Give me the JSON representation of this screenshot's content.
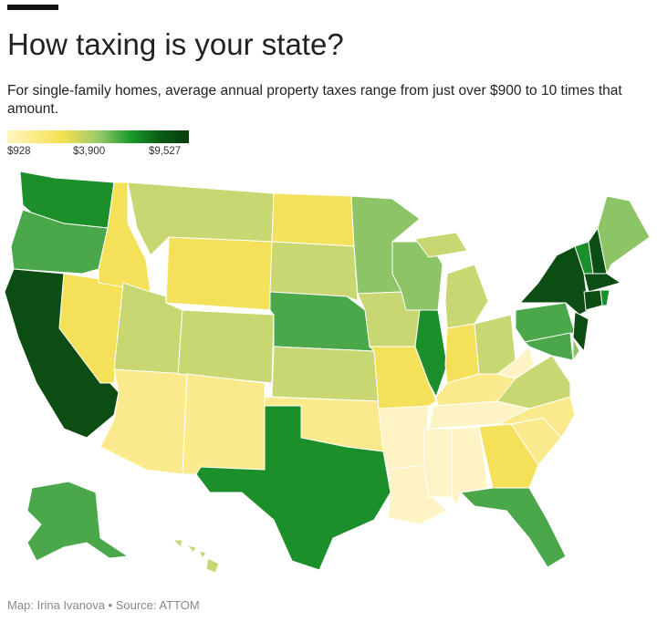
{
  "title": "How taxing is your state?",
  "subtitle": "For single-family homes, average annual property taxes range from just over $900 to 10 times that amount.",
  "legend": {
    "min": "$928",
    "mid": "$3,900",
    "max": "$9,527"
  },
  "footer": "Map: Irina Ivanova • Source: ATTOM",
  "colors": {
    "dark": "#0b4d12",
    "green": "#1a8f2a",
    "medium": "#4aa84a",
    "lightgreen": "#8cc466",
    "yellowgreen": "#c8d772",
    "yellow": "#f5e05a",
    "lightyellow": "#fbea8c",
    "pale": "#fdf3c4"
  },
  "states": {
    "WA": "green",
    "OR": "medium",
    "CA": "dark",
    "NV": "yellow",
    "ID": "yellow",
    "MT": "yellowgreen",
    "WY": "yellow",
    "UT": "yellowgreen",
    "AZ": "lightyellow",
    "CO": "yellowgreen",
    "NM": "lightyellow",
    "ND": "yellow",
    "SD": "yellowgreen",
    "NE": "medium",
    "KS": "yellowgreen",
    "OK": "lightyellow",
    "TX": "green",
    "MN": "lightgreen",
    "IA": "yellowgreen",
    "MO": "yellow",
    "AR": "pale",
    "LA": "pale",
    "WI": "lightgreen",
    "IL": "green",
    "MI": "yellowgreen",
    "IN": "yellow",
    "OH": "yellowgreen",
    "KY": "lightyellow",
    "TN": "pale",
    "MS": "pale",
    "AL": "pale",
    "GA": "yellow",
    "FL": "medium",
    "SC": "lightyellow",
    "NC": "lightyellow",
    "VA": "yellowgreen",
    "WV": "pale",
    "PA": "medium",
    "NY": "dark",
    "NJ": "dark",
    "MD": "medium",
    "DE": "lightgreen",
    "VT": "green",
    "NH": "dark",
    "ME": "lightgreen",
    "MA": "dark",
    "CT": "dark",
    "RI": "green",
    "AK": "medium",
    "HI": "yellowgreen"
  }
}
